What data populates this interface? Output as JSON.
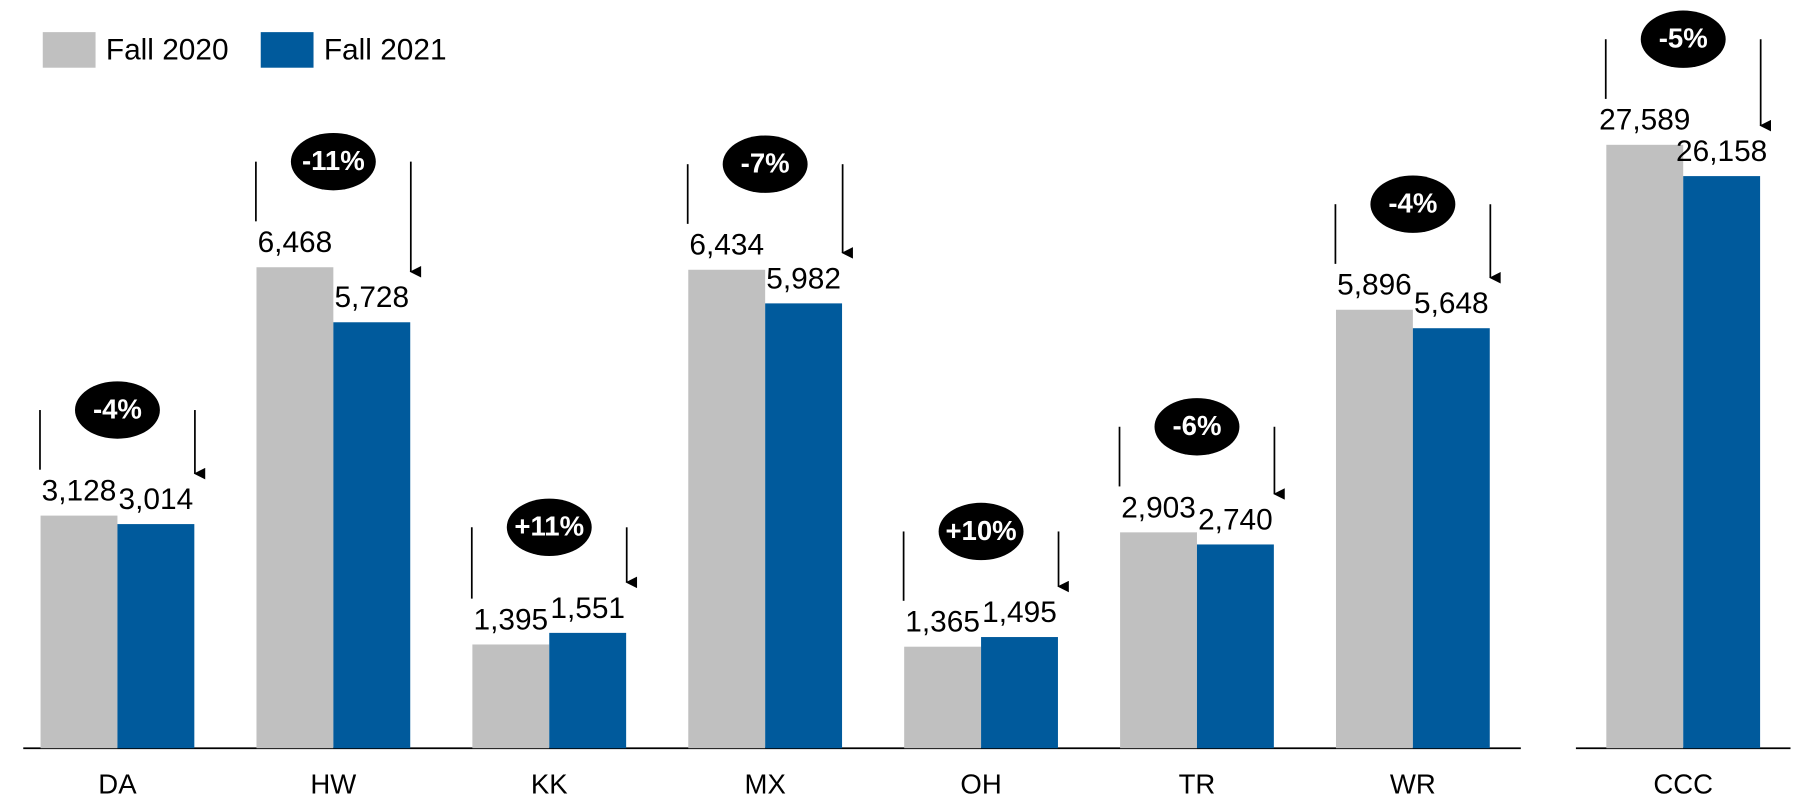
{
  "chart_data": [
    {
      "type": "bar",
      "categories": [
        "DA",
        "HW",
        "KK",
        "MX",
        "OH",
        "TR",
        "WR"
      ],
      "series": [
        {
          "name": "Fall 2020",
          "color": "#c0c0c0",
          "values": [
            3128,
            6468,
            1395,
            6434,
            1365,
            2903,
            5896
          ],
          "value_labels": [
            "3,128",
            "6,468",
            "1,395",
            "6,434",
            "1,365",
            "2,903",
            "5,896"
          ]
        },
        {
          "name": "Fall 2021",
          "color": "#005a9c",
          "values": [
            3014,
            5728,
            1551,
            5982,
            1495,
            2740,
            5648
          ],
          "value_labels": [
            "3,014",
            "5,728",
            "1,551",
            "5,982",
            "1,495",
            "2,740",
            "5,648"
          ]
        }
      ],
      "annotations": [
        "-4%",
        "-11%",
        "+11%",
        "-7%",
        "+10%",
        "-6%",
        "-4%"
      ],
      "ylim": [
        0,
        10000
      ],
      "legend": "top-left"
    },
    {
      "type": "bar",
      "categories": [
        "CCC"
      ],
      "series": [
        {
          "color": "#c0c0c0",
          "values": [
            27589
          ],
          "value_labels": [
            "27,589"
          ]
        },
        {
          "color": "#005a9c",
          "values": [
            26158
          ],
          "value_labels": [
            "26,158"
          ]
        }
      ],
      "annotations": [
        "-5%"
      ],
      "ylim": [
        0,
        34000
      ]
    }
  ]
}
